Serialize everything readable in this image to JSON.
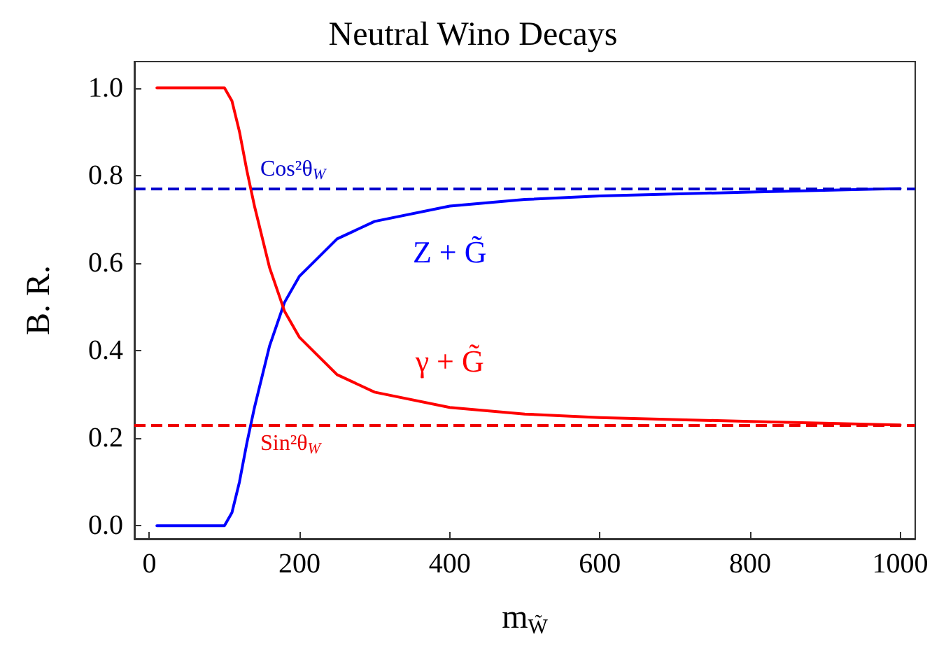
{
  "chart_data": {
    "type": "line",
    "title": "Neutral Wino Decays",
    "xlabel": "m$_{W̃}$",
    "ylabel": "B. R.",
    "series": [
      {
        "name": "Z + G̃",
        "color": "#0000ff",
        "x": [
          10,
          95,
          100,
          110,
          120,
          130,
          140,
          160,
          180,
          200,
          250,
          300,
          400,
          500,
          600,
          800,
          1000
        ],
        "values": [
          0,
          0,
          0,
          0.03,
          0.1,
          0.19,
          0.27,
          0.41,
          0.51,
          0.57,
          0.655,
          0.695,
          0.73,
          0.745,
          0.753,
          0.762,
          0.77
        ]
      },
      {
        "name": "γ + G̃",
        "color": "#ff0000",
        "x": [
          10,
          95,
          100,
          110,
          120,
          130,
          140,
          160,
          180,
          200,
          250,
          300,
          400,
          500,
          600,
          800,
          1000
        ],
        "values": [
          1,
          1,
          1,
          0.97,
          0.9,
          0.81,
          0.73,
          0.59,
          0.49,
          0.43,
          0.345,
          0.305,
          0.27,
          0.255,
          0.247,
          0.238,
          0.23
        ]
      }
    ],
    "ref_lines": [
      {
        "axis": "y",
        "value": 0.77,
        "label": "Cos²θ$_{W}$",
        "color": "#0000cc",
        "line_style": "dashed"
      },
      {
        "axis": "y",
        "value": 0.23,
        "label": "Sin²θ$_{W}$",
        "color": "#ee0000",
        "line_style": "dashed"
      }
    ],
    "xlim": [
      -20,
      1020
    ],
    "ylim": [
      -0.03,
      1.06
    ],
    "xticks": [
      0,
      200,
      400,
      600,
      800,
      1000
    ],
    "yticks": [
      {
        "value": 0,
        "label": "0.0"
      },
      {
        "value": 0.2,
        "label": "0.2"
      },
      {
        "value": 0.4,
        "label": "0.4"
      },
      {
        "value": 0.6,
        "label": "0.6"
      },
      {
        "value": 0.8,
        "label": "0.8"
      },
      {
        "value": 1,
        "label": "1.0"
      }
    ],
    "grid": false,
    "legend": false,
    "marker": "none",
    "line_style": "solid"
  }
}
